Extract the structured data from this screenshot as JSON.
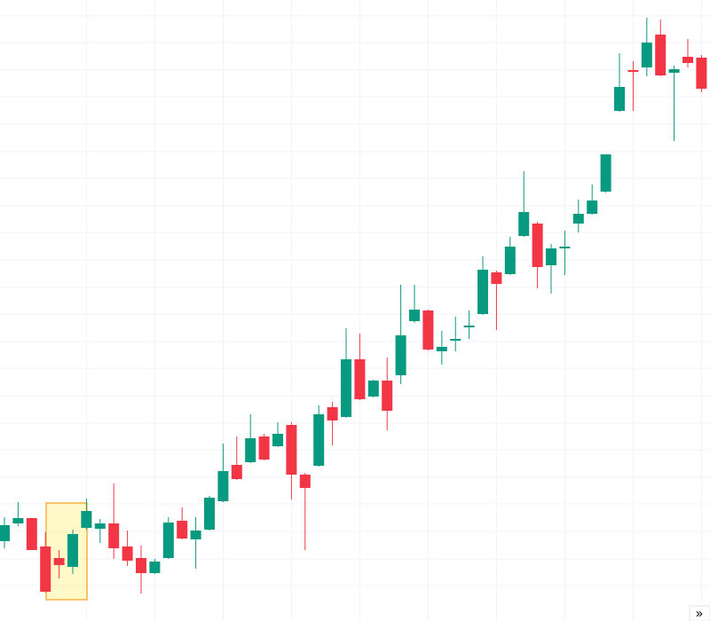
{
  "chart_data": {
    "type": "candlestick",
    "categories": [
      null,
      null,
      null,
      null,
      null,
      null,
      null,
      null,
      null,
      null,
      null,
      null,
      null,
      null,
      null,
      null,
      null,
      null,
      null,
      null,
      null,
      null,
      null,
      null,
      null,
      null,
      null,
      null,
      null,
      null,
      null,
      null,
      null,
      null,
      null,
      null,
      null,
      null,
      null,
      null,
      null,
      null,
      null,
      null,
      null,
      null,
      null,
      null,
      null,
      null,
      null,
      null
    ],
    "open": [
      90,
      110,
      116,
      84,
      71,
      61,
      105,
      104,
      110,
      84,
      71,
      54,
      71,
      113,
      92,
      103,
      135,
      176,
      179,
      208,
      197,
      221,
      165,
      175,
      241,
      230,
      295,
      253,
      271,
      277,
      338,
      350,
      304,
      316,
      331,
      346,
      393,
      391,
      434,
      448,
      401,
      420,
      448,
      459,
      484,
      575,
      621,
      624,
      661,
      618,
      636,
      635
    ],
    "high": [
      117,
      134,
      116,
      100,
      80,
      103,
      138,
      115,
      155,
      102,
      85,
      70,
      117,
      128,
      117,
      141,
      200,
      208,
      233,
      211,
      224,
      224,
      167,
      243,
      247,
      330,
      324,
      272,
      297,
      379,
      379,
      351,
      327,
      343,
      350,
      411,
      395,
      433,
      507,
      450,
      425,
      440,
      475,
      492,
      526,
      640,
      631,
      680,
      678,
      626,
      656,
      638
    ],
    "low": [
      82,
      107,
      80,
      32,
      48,
      53,
      103,
      88,
      70,
      62,
      31,
      53,
      70,
      92,
      59,
      102,
      134,
      159,
      178,
      181,
      196,
      137,
      80,
      174,
      198,
      229,
      249,
      252,
      215,
      267,
      336,
      305,
      289,
      304,
      318,
      345,
      328,
      390,
      433,
      375,
      369,
      390,
      438,
      458,
      483,
      574,
      575,
      614,
      614,
      541,
      624,
      596
    ],
    "close": [
      108,
      116,
      80,
      33,
      63,
      98,
      124,
      110,
      82,
      68,
      54,
      67,
      111,
      93,
      102,
      139,
      169,
      160,
      206,
      182,
      211,
      165,
      150,
      233,
      226,
      295,
      250,
      271,
      237,
      322,
      351,
      306,
      309,
      318,
      333,
      396,
      380,
      422,
      461,
      399,
      420,
      422,
      459,
      474,
      526,
      602,
      619,
      652,
      615,
      622,
      629,
      600
    ],
    "up_color": "#089981",
    "down_color": "#f23645",
    "ylim": [
      0,
      700
    ],
    "yticks": [
      40,
      70,
      101,
      132,
      162,
      193,
      223,
      254,
      285,
      315,
      346,
      376,
      407,
      438,
      468,
      499,
      529,
      560,
      591,
      621,
      652,
      682
    ],
    "grid": true
  },
  "controls": {
    "scroll_button": "»"
  }
}
